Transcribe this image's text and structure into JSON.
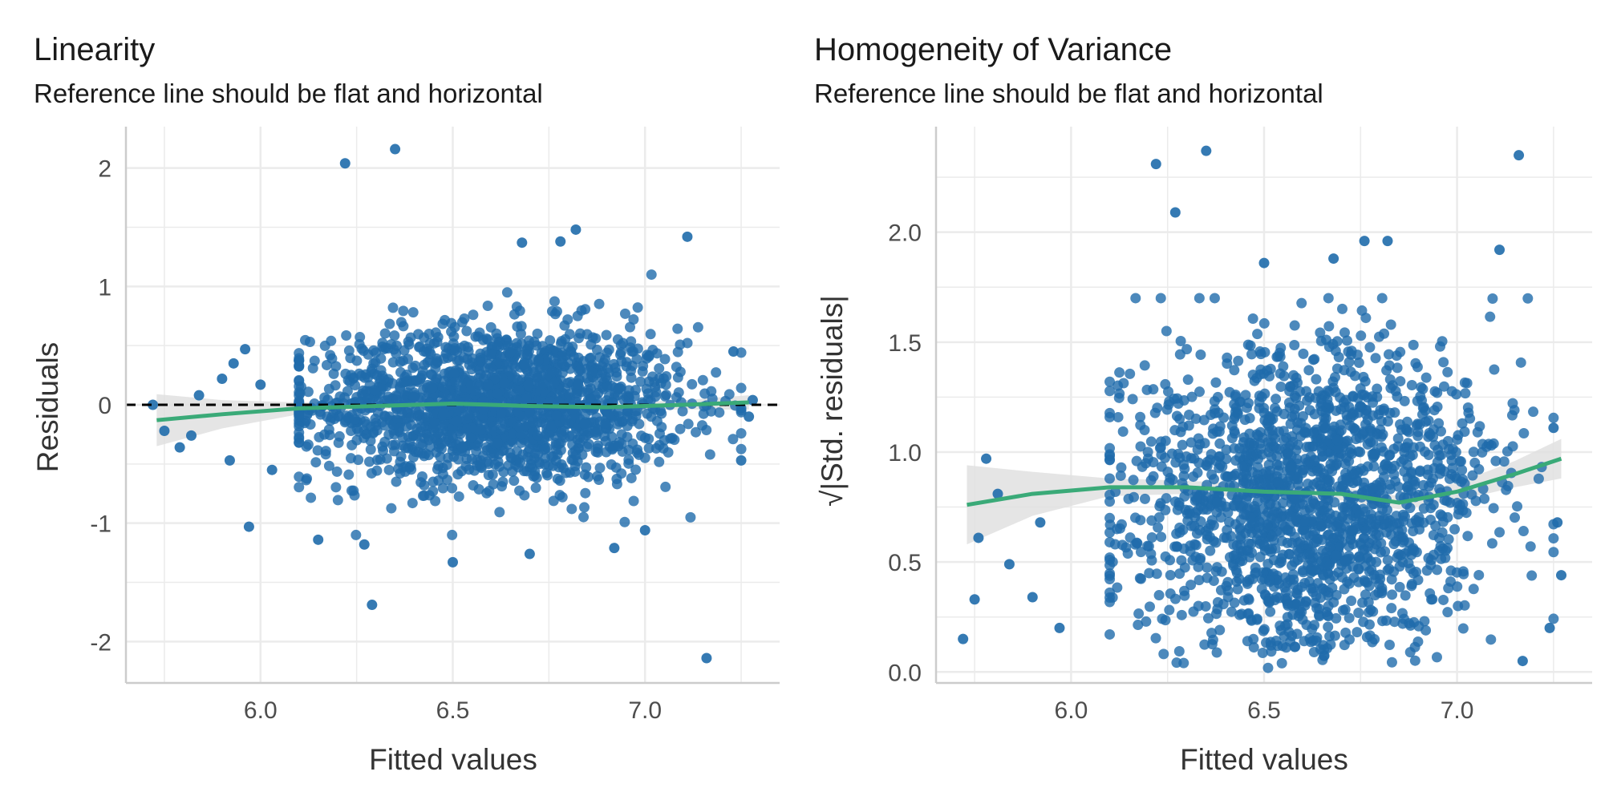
{
  "chart_data": [
    {
      "id": "linearity",
      "type": "scatter",
      "title": "Linearity",
      "subtitle": "Reference line should be flat and horizontal",
      "xlabel": "Fitted values",
      "ylabel": "Residuals",
      "xlim": [
        5.65,
        7.35
      ],
      "ylim": [
        -2.35,
        2.35
      ],
      "xticks": [
        6.0,
        6.5,
        7.0
      ],
      "xtick_labels": [
        "6.0",
        "6.5",
        "7.0"
      ],
      "yticks": [
        -2,
        -1,
        0,
        1,
        2
      ],
      "ytick_labels": [
        "-2",
        "-1",
        "0",
        "1",
        "2"
      ],
      "grid": true,
      "reference_line": {
        "y": 0,
        "style": "dashed",
        "color": "#000000"
      },
      "points_generated": {
        "count": 1800,
        "x_range": [
          6.1,
          7.25
        ],
        "spread": 0.45
      },
      "outliers": [
        {
          "x": 6.22,
          "y": 2.04
        },
        {
          "x": 6.35,
          "y": 2.16
        },
        {
          "x": 6.82,
          "y": 1.48
        },
        {
          "x": 6.78,
          "y": 1.38
        },
        {
          "x": 6.68,
          "y": 1.37
        },
        {
          "x": 7.11,
          "y": 1.42
        },
        {
          "x": 6.29,
          "y": -1.69
        },
        {
          "x": 7.16,
          "y": -2.14
        },
        {
          "x": 6.5,
          "y": -1.33
        },
        {
          "x": 6.15,
          "y": -1.14
        },
        {
          "x": 5.97,
          "y": -1.03
        },
        {
          "x": 6.27,
          "y": -1.18
        },
        {
          "x": 5.72,
          "y": 0.0
        },
        {
          "x": 5.75,
          "y": -0.22
        },
        {
          "x": 5.79,
          "y": -0.36
        },
        {
          "x": 5.84,
          "y": 0.08
        },
        {
          "x": 5.9,
          "y": 0.22
        },
        {
          "x": 5.93,
          "y": 0.35
        },
        {
          "x": 5.96,
          "y": 0.47
        },
        {
          "x": 5.92,
          "y": -0.47
        },
        {
          "x": 5.82,
          "y": -0.26
        },
        {
          "x": 6.0,
          "y": 0.17
        },
        {
          "x": 6.03,
          "y": -0.55
        },
        {
          "x": 7.25,
          "y": -0.47
        },
        {
          "x": 7.28,
          "y": 0.04
        },
        {
          "x": 7.23,
          "y": 0.45
        },
        {
          "x": 7.27,
          "y": -0.1
        },
        {
          "x": 6.92,
          "y": -1.21
        },
        {
          "x": 7.0,
          "y": -1.06
        },
        {
          "x": 6.7,
          "y": -1.26
        }
      ],
      "smooth": {
        "x": [
          5.73,
          5.9,
          6.1,
          6.3,
          6.5,
          6.7,
          6.9,
          7.1,
          7.27
        ],
        "y": [
          -0.13,
          -0.08,
          -0.03,
          -0.01,
          0.01,
          -0.01,
          -0.02,
          0.0,
          0.02
        ]
      },
      "smooth_ci_halfwidth": [
        0.22,
        0.12,
        0.05,
        0.03,
        0.03,
        0.03,
        0.03,
        0.04,
        0.06
      ]
    },
    {
      "id": "homogeneity",
      "type": "scatter",
      "title": "Homogeneity of Variance",
      "subtitle": "Reference line should be flat and horizontal",
      "xlabel": "Fitted values",
      "ylabel": "|Std. residuals|",
      "ylabel_prefix": "√",
      "xlim": [
        5.65,
        7.35
      ],
      "ylim": [
        -0.05,
        2.48
      ],
      "xticks": [
        6.0,
        6.5,
        7.0
      ],
      "xtick_labels": [
        "6.0",
        "6.5",
        "7.0"
      ],
      "yticks": [
        0.0,
        0.5,
        1.0,
        1.5,
        2.0
      ],
      "ytick_labels": [
        "0.0",
        "0.5",
        "1.0",
        "1.5",
        "2.0"
      ],
      "grid": true,
      "points_generated": {
        "count": 1800,
        "x_range": [
          6.1,
          7.25
        ],
        "spread": 0.45
      },
      "outliers": [
        {
          "x": 6.22,
          "y": 2.31
        },
        {
          "x": 6.35,
          "y": 2.37
        },
        {
          "x": 6.27,
          "y": 2.09
        },
        {
          "x": 7.16,
          "y": 2.35
        },
        {
          "x": 6.82,
          "y": 1.96
        },
        {
          "x": 6.68,
          "y": 1.88
        },
        {
          "x": 7.11,
          "y": 1.92
        },
        {
          "x": 5.72,
          "y": 0.15
        },
        {
          "x": 5.75,
          "y": 0.33
        },
        {
          "x": 5.78,
          "y": 0.97
        },
        {
          "x": 5.76,
          "y": 0.61
        },
        {
          "x": 5.84,
          "y": 0.49
        },
        {
          "x": 5.81,
          "y": 0.81
        },
        {
          "x": 5.9,
          "y": 0.34
        },
        {
          "x": 5.92,
          "y": 0.68
        },
        {
          "x": 5.97,
          "y": 0.2
        },
        {
          "x": 7.27,
          "y": 0.44
        },
        {
          "x": 7.26,
          "y": 0.68
        },
        {
          "x": 7.25,
          "y": 1.11
        },
        {
          "x": 7.24,
          "y": 0.2
        },
        {
          "x": 7.17,
          "y": 0.05
        },
        {
          "x": 6.5,
          "y": 1.86
        },
        {
          "x": 6.76,
          "y": 1.96
        }
      ],
      "smooth": {
        "x": [
          5.73,
          5.9,
          6.1,
          6.3,
          6.5,
          6.7,
          6.85,
          7.0,
          7.15,
          7.27
        ],
        "y": [
          0.76,
          0.81,
          0.84,
          0.84,
          0.82,
          0.81,
          0.77,
          0.82,
          0.9,
          0.97
        ]
      },
      "smooth_ci_halfwidth": [
        0.18,
        0.1,
        0.04,
        0.03,
        0.03,
        0.03,
        0.03,
        0.04,
        0.06,
        0.09
      ]
    }
  ],
  "colors": {
    "points": "#1f6bab",
    "smooth": "#3aaa78",
    "ci_band": "#e0e0e0",
    "grid": "#ebebeb",
    "axis": "#cccccc",
    "reference": "#000000"
  }
}
